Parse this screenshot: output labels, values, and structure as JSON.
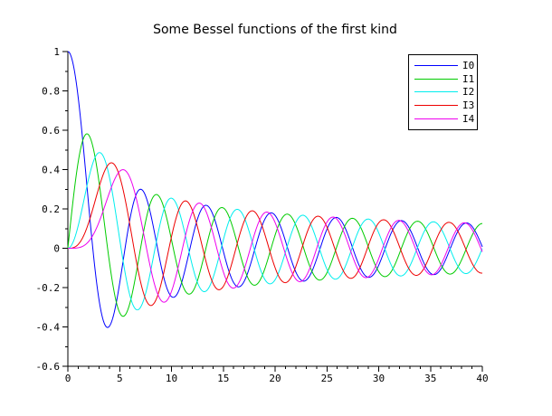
{
  "chart_data": {
    "type": "line",
    "title": "Some Bessel functions of the first kind",
    "xlabel": "",
    "ylabel": "",
    "xlim": [
      0,
      40
    ],
    "ylim": [
      -0.6,
      1
    ],
    "x_major_ticks": [
      0,
      5,
      10,
      15,
      20,
      25,
      30,
      35,
      40
    ],
    "x_tick_labels": [
      "0",
      "5",
      "10",
      "15",
      "20",
      "25",
      "30",
      "35",
      "40"
    ],
    "x_minor_tick_step": 1,
    "y_major_ticks": [
      1,
      0.8,
      0.6,
      0.4,
      0.2,
      0,
      -0.2,
      -0.4,
      -0.6
    ],
    "y_tick_labels": [
      "1",
      "0.8",
      "0.6",
      "0.4",
      "0.2",
      "0",
      "-0.2",
      "-0.4",
      "-0.6"
    ],
    "y_minor_tick_step": 0.1,
    "grid": false,
    "background": "#ffffff",
    "axis_color": "#000000",
    "legend_position": "top-right-inside",
    "sampling": {
      "x_min": 0,
      "x_max": 40,
      "step": 0.08
    },
    "series": [
      {
        "name": "I0",
        "color": "#0000ff",
        "function": "BesselJ",
        "order": 0
      },
      {
        "name": "I1",
        "color": "#00cc00",
        "function": "BesselJ",
        "order": 1
      },
      {
        "name": "I2",
        "color": "#00eeee",
        "function": "BesselJ",
        "order": 2
      },
      {
        "name": "I3",
        "color": "#ee0000",
        "function": "BesselJ",
        "order": 3
      },
      {
        "name": "I4",
        "color": "#ee00ee",
        "function": "BesselJ",
        "order": 4
      }
    ],
    "key_features": {
      "I0_start": [
        0,
        1
      ],
      "I0_first_min": [
        3.83,
        -0.4
      ],
      "I1_first_max": [
        1.84,
        0.58
      ],
      "I2_first_max": [
        3.05,
        0.49
      ],
      "I3_first_max": [
        4.2,
        0.43
      ],
      "I4_first_max": [
        5.32,
        0.4
      ]
    }
  }
}
